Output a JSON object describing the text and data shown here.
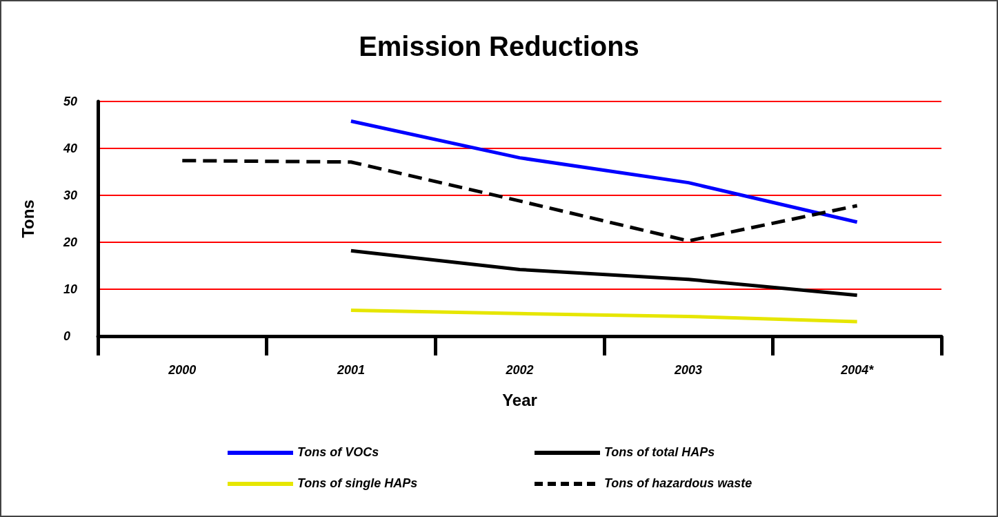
{
  "chart_data": {
    "type": "line",
    "title": "Emission Reductions",
    "xlabel": "Year",
    "ylabel": "Tons",
    "categories": [
      "2000",
      "2001",
      "2002",
      "2003",
      "2004*"
    ],
    "series": [
      {
        "name": "Tons of VOCs",
        "color": "#0000ff",
        "line_style": "solid",
        "values": [
          null,
          45.8,
          38,
          32.7,
          24.3
        ]
      },
      {
        "name": "Tons of total HAPs",
        "color": "#000000",
        "line_style": "solid",
        "values": [
          null,
          18.2,
          14.2,
          12.1,
          8.7
        ]
      },
      {
        "name": "Tons of single HAPs",
        "color": "#e6e600",
        "line_style": "solid",
        "values": [
          null,
          5.5,
          4.8,
          4.2,
          3.1
        ]
      },
      {
        "name": "Tons of hazardous waste",
        "color": "#000000",
        "line_style": "dashed",
        "values": [
          37.4,
          37.1,
          28.8,
          20.3,
          27.8
        ]
      }
    ],
    "ylim": [
      0,
      50
    ],
    "yticks": [
      0,
      10,
      20,
      30,
      40,
      50
    ],
    "grid": "y",
    "legend": "bottom",
    "marker": "none"
  }
}
